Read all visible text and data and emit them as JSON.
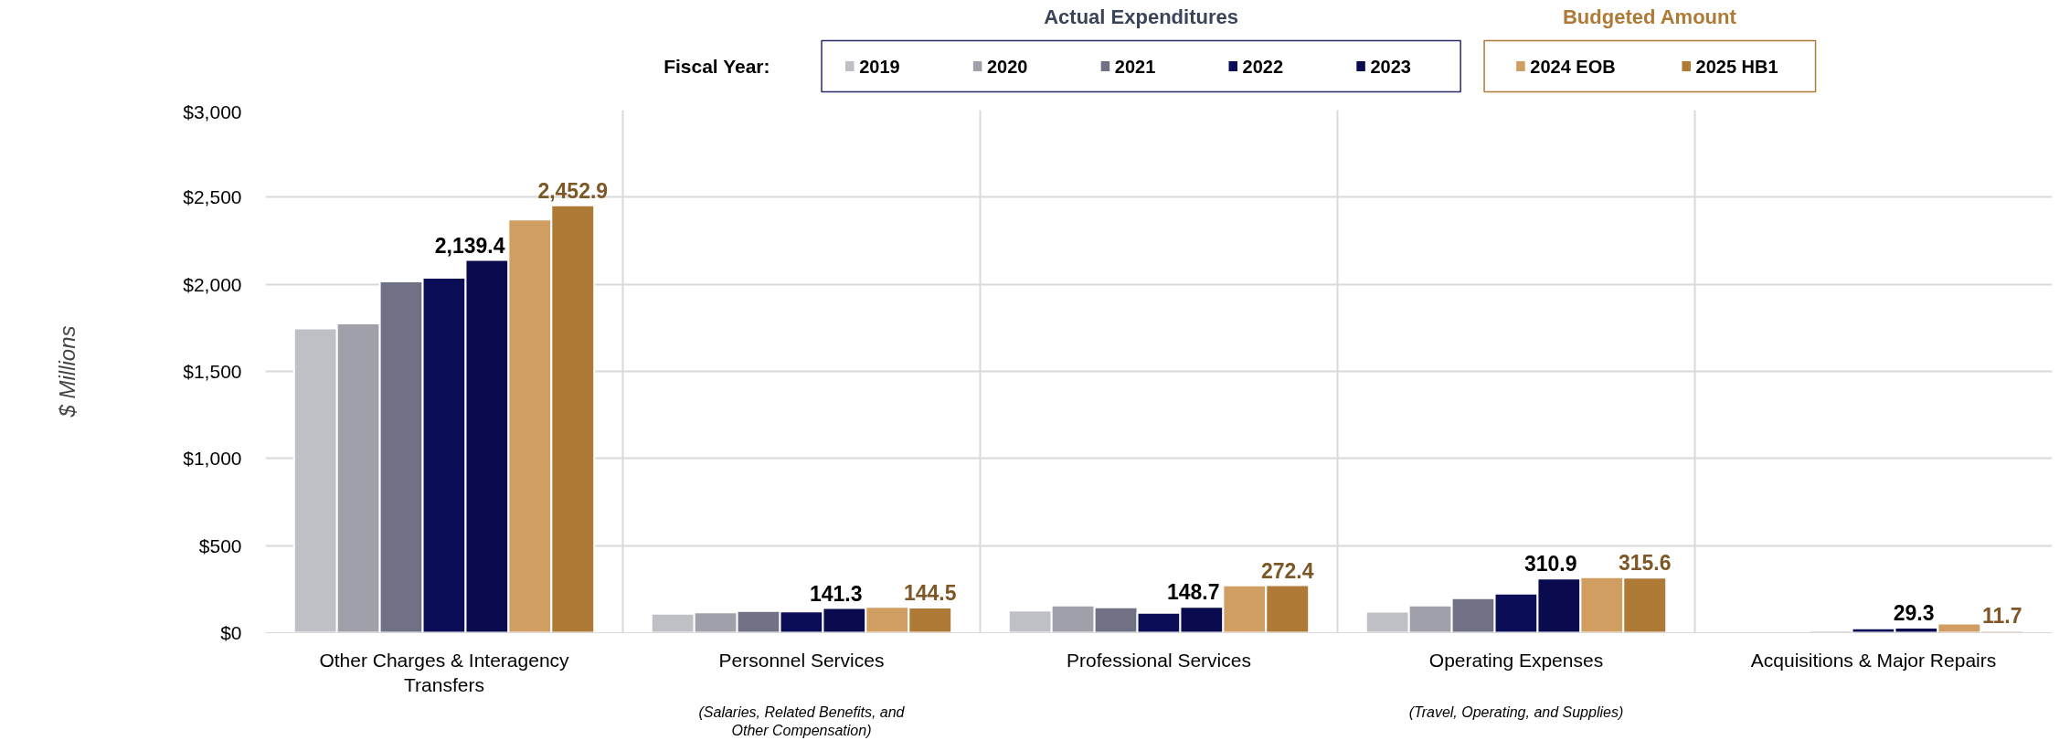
{
  "chart_data": {
    "type": "bar",
    "categories": [
      "Other Charges & Interagency Transfers",
      "Personnel Services",
      "Professional Services",
      "Operating Expenses",
      "Acquisitions & Major Repairs"
    ],
    "ylabel": "$ Millions",
    "legend_title": "Fiscal Year:",
    "annotations": [
      "Actual Expenditures",
      "Budgeted Amount",
      "(Salaries, Related Benefits, and Other Compensation)",
      "(Travel, Operating, and Supplies)"
    ],
    "series": [
      {
        "name": "2019",
        "color": "#bfc0c5",
        "values": [
          1746,
          109,
          127,
          120,
          null
        ]
      },
      {
        "name": "2020",
        "color": "#a0a0aa",
        "values": [
          1775,
          117,
          156,
          156,
          null
        ]
      },
      {
        "name": "2021",
        "color": "#717186",
        "values": [
          2017,
          125,
          146,
          198,
          12
        ]
      },
      {
        "name": "2022",
        "color": "#0b0e56",
        "values": [
          2037,
          122,
          114,
          224,
          25
        ]
      },
      {
        "name": "2023",
        "color": "#090b4e",
        "values": [
          2139.4,
          141.3,
          148.7,
          310.9,
          29.3
        ],
        "value_labels": [
          "2,139.4",
          "141.3",
          "148.7",
          "310.9",
          "29.3"
        ]
      },
      {
        "name": "2024 EOB",
        "color": "#cf9e60",
        "values": [
          2372,
          148,
          272,
          318,
          52
        ]
      },
      {
        "name": "2025 HB1",
        "color": "#ae7a36",
        "values": [
          2452.9,
          144.5,
          272.4,
          315.6,
          11.7
        ],
        "value_labels": [
          "2,452.9",
          "144.5",
          "272.4",
          "315.6",
          "11.7"
        ]
      }
    ],
    "ylim": [
      0,
      3000
    ],
    "yticks": [
      {
        "value": 0,
        "label": "$0"
      },
      {
        "value": 500,
        "label": "$500"
      },
      {
        "value": 1000,
        "label": "$1,000"
      },
      {
        "value": 1500,
        "label": "$1,500"
      },
      {
        "value": 2000,
        "label": "$2,000"
      },
      {
        "value": 2500,
        "label": "$2,500"
      },
      {
        "value": 3000,
        "label": "$3,000"
      }
    ],
    "grid": true,
    "legend": "top"
  }
}
